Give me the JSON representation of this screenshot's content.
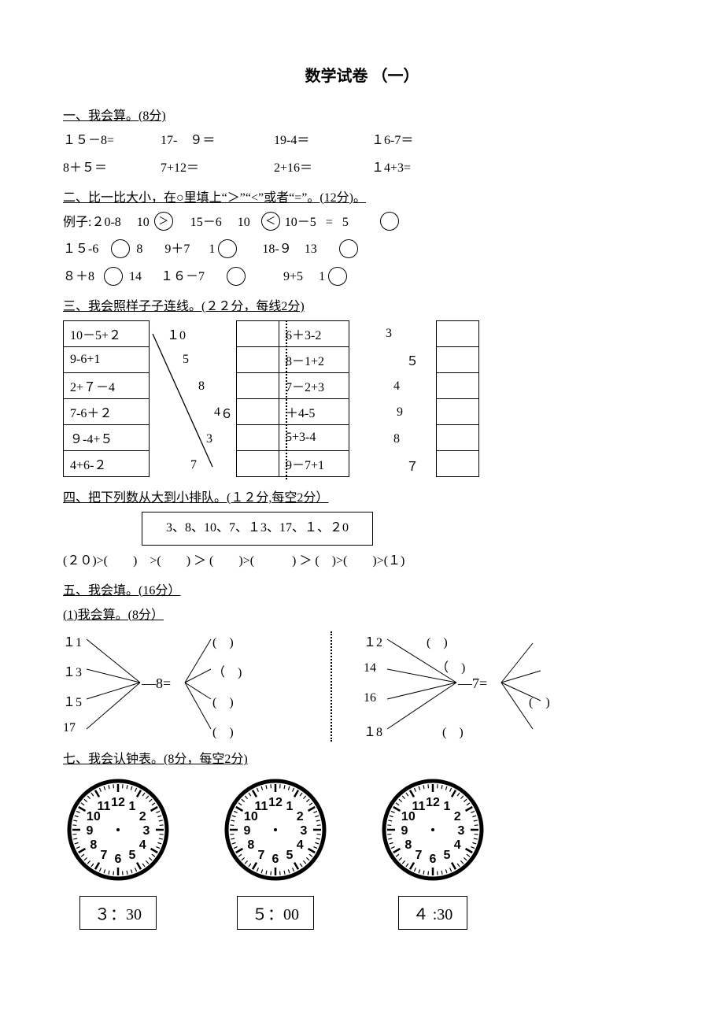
{
  "title": "数学试卷 （一）",
  "s1": {
    "head": "一、我会算。(8分)",
    "row1": [
      "１５－8=",
      "17-　９＝",
      "19-4＝",
      "１6-7＝"
    ],
    "row2": [
      "8＋５＝",
      "7+12＝",
      "2+16＝",
      "１4+3="
    ]
  },
  "s2": {
    "head": "二、比一比大小，在○里填上“＞”“<”或者“=”。(12分)。",
    "ex_a": "例子:２0-8",
    "ex_a_num": "10",
    "ex_a_mark": "＞",
    "ex_b": "15－6",
    "ex_b_num": "10",
    "ex_b_mark": "＜",
    "ex_c": "10－5",
    "ex_c_eq": "=",
    "ex_c_num": "5",
    "r2a_l": "１５-6",
    "r2a_r": "8",
    "r2b_l": "9＋7",
    "r2b_r": "1",
    "r2c_l": "18-９",
    "r2c_r": "13",
    "r3a_l": "８＋8",
    "r3a_r": "14",
    "r3b_l": "１６－7",
    "r3c_l": "9+5",
    "r3c_r": "1"
  },
  "s3": {
    "head": "三、我会照样子子连线。(２２分，每线2分)",
    "left_exprs": [
      "10－5+２",
      "9-6+1",
      "2+７－4",
      "7-6＋２",
      "９-4+５",
      "4+6-２"
    ],
    "left_nums_l": [
      "１0",
      "5",
      "8",
      "4",
      "3",
      "7"
    ],
    "left_nums_r": [
      "",
      "",
      "",
      "６",
      "",
      ""
    ],
    "left_line_from": 0,
    "left_line_to": 5,
    "right_exprs": [
      "6＋3-2",
      "8－1+2",
      "7－2+3",
      "＋4-5",
      "5+3-4",
      "9－7+1"
    ],
    "right_nums_l": [
      "3",
      "",
      "4",
      "9",
      "8",
      ""
    ],
    "right_nums_r": [
      "",
      "５",
      "",
      "",
      "",
      "７"
    ]
  },
  "s4": {
    "head": "四、把下列数从大到小排队。(１２分,每空2分）",
    "box": "3、8、10、7、１3、17、１、２0",
    "chain": "(２０)>(　　)　>(　　) ＞ (　　)>(　　　) ＞ (　)>(　　)>(１)"
  },
  "s5": {
    "head": "五、我会填。(16分）",
    "sub": "(1)我会算。(8分）",
    "fanA": {
      "inputs": [
        "１1",
        "１3",
        "１5",
        "17"
      ],
      "op": "—8=",
      "blanks": [
        "(　)",
        "（　)",
        "(　)",
        "(　)"
      ]
    },
    "fanB": {
      "inputs": [
        "１2",
        "14",
        "16",
        "１8"
      ],
      "op": "—7=",
      "blanks": [
        "(　)",
        "（　)",
        "(　)",
        "(　)"
      ]
    }
  },
  "s7": {
    "head": "七、我会认钟表。(8分，每空2分)",
    "clocks": [
      {
        "label": "３：30"
      },
      {
        "label": "５：00"
      },
      {
        "label": "４ :30"
      }
    ],
    "clock_colors": {
      "face": "#ffffff",
      "ring": "#000000",
      "tick": "#000000",
      "num": "#000000"
    }
  }
}
